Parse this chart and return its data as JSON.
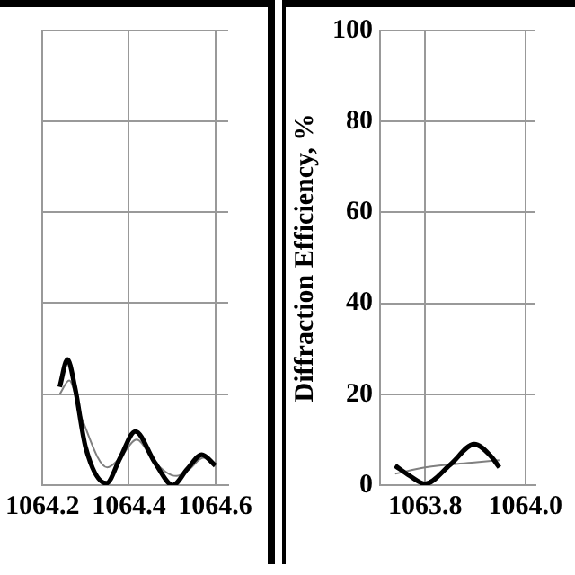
{
  "chart_data": [
    {
      "type": "line",
      "xlim": [
        1064.2,
        1064.63
      ],
      "xticks": [
        1064.2,
        1064.4,
        1064.6
      ],
      "ylim": [
        0,
        100
      ],
      "yticks": [
        0,
        20,
        40,
        60,
        80,
        100
      ],
      "tick_labels": "x",
      "grid": true,
      "legend": false,
      "marker": "none",
      "line_style": "solid",
      "series": [
        {
          "color": "#000000",
          "x": [
            1064.24,
            1064.258,
            1064.275,
            1064.3,
            1064.348,
            1064.38,
            1064.415,
            1064.46,
            1064.502,
            1064.535,
            1064.569,
            1064.6
          ],
          "values": [
            21.6,
            27.6,
            21.6,
            8.3,
            0.4,
            6,
            11.8,
            5,
            0,
            3.5,
            6.7,
            4.3
          ]
        },
        {
          "color": "#808080",
          "x": [
            1064.24,
            1064.262,
            1064.29,
            1064.35,
            1064.38,
            1064.418,
            1064.46,
            1064.51,
            1064.54,
            1064.572,
            1064.6
          ],
          "values": [
            20,
            23,
            15,
            3.9,
            6,
            10,
            5,
            2,
            3.5,
            6,
            4.3
          ]
        }
      ]
    },
    {
      "type": "line",
      "ylabel": "Diffraction Efficiency, %",
      "xlim": [
        1063.71,
        1064.02
      ],
      "xticks": [
        1063.8,
        {
          "value": 1064.0,
          "label": "1064.0"
        }
      ],
      "ylim": [
        0,
        100
      ],
      "yticks": [
        0,
        20,
        40,
        60,
        80,
        100
      ],
      "grid": true,
      "legend": false,
      "marker": "none",
      "line_style": "solid",
      "series": [
        {
          "color": "#000000",
          "x": [
            1063.74,
            1063.77,
            1063.8,
            1063.85,
            1063.898,
            1063.93,
            1063.948
          ],
          "values": [
            4.3,
            2,
            0.3,
            4.5,
            9,
            6.5,
            3.9
          ]
        },
        {
          "color": "#808080",
          "x": [
            1063.74,
            1063.8,
            1063.898,
            1063.948
          ],
          "values": [
            2.5,
            3.9,
            5,
            5.5
          ]
        }
      ]
    }
  ]
}
